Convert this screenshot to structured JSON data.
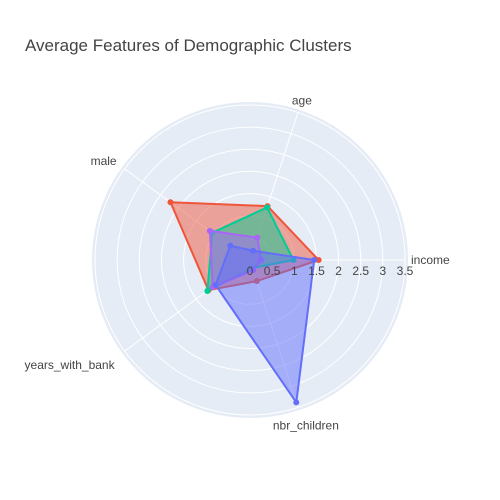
{
  "chart_data": {
    "type": "radar",
    "title": "Average Features of Demographic Clusters",
    "axes": [
      "income",
      "age",
      "male",
      "years_with_bank",
      "nbr_children"
    ],
    "radial_range": [
      0,
      3.5
    ],
    "radial_ticks": [
      "0",
      "0.5",
      "1",
      "1.5",
      "2",
      "2.5",
      "3",
      "3.5"
    ],
    "grid": true,
    "legend": "none",
    "series": [
      {
        "color": "#ef553b",
        "values": [
          1.55,
          1.28,
          2.22,
          1.16,
          0.5
        ]
      },
      {
        "color": "#00cc96",
        "values": [
          0.98,
          1.25,
          1.05,
          1.19,
          0.19
        ]
      },
      {
        "color": "#ab63fa",
        "values": [
          0.25,
          0.53,
          1.12,
          1.04,
          0.24
        ]
      },
      {
        "color": "#636efa",
        "values": [
          1.45,
          0.22,
          0.55,
          0.96,
          3.38
        ]
      }
    ]
  }
}
